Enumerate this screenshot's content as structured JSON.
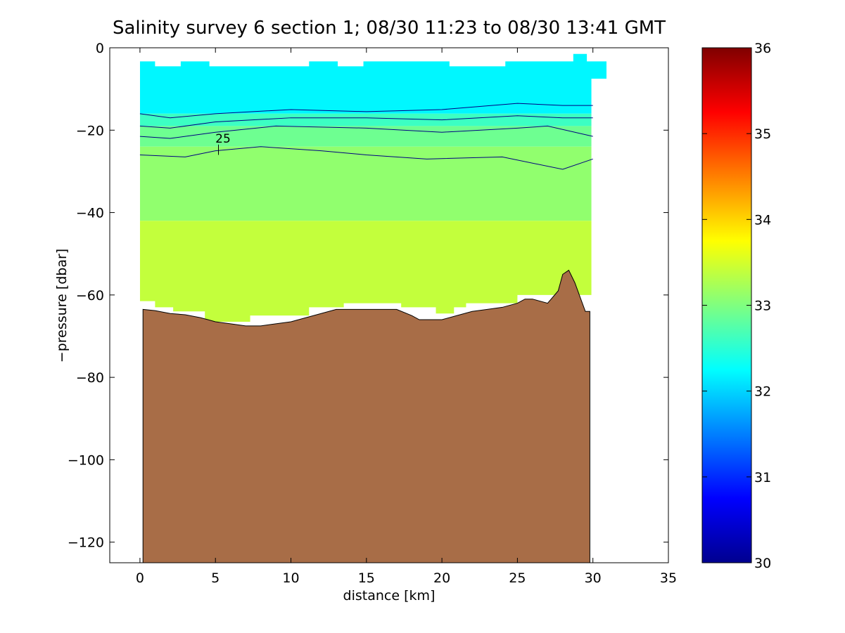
{
  "chart_data": {
    "type": "heatmap",
    "title": "Salinity survey 6 section 1; 08/30 11:23 to 08/30 13:41 GMT",
    "xlabel": "distance [km]",
    "ylabel": "−pressure [dbar]",
    "xlim": [
      -2,
      35
    ],
    "ylim": [
      -125,
      0
    ],
    "xticks": [
      0,
      5,
      10,
      15,
      20,
      25,
      30,
      35
    ],
    "xtick_labels": [
      "0",
      "5",
      "10",
      "15",
      "20",
      "25",
      "30",
      "35"
    ],
    "yticks": [
      0,
      -20,
      -40,
      -60,
      -80,
      -100,
      -120
    ],
    "ytick_labels": [
      "0",
      "−20",
      "−40",
      "−60",
      "−80",
      "−100",
      "−120"
    ],
    "colorbar": {
      "range": [
        30,
        36
      ],
      "ticks": [
        30,
        31,
        32,
        33,
        34,
        35,
        36
      ],
      "tick_labels": [
        "30",
        "31",
        "32",
        "33",
        "34",
        "35",
        "36"
      ],
      "colormap": "jet"
    },
    "contour_label": "25",
    "contour_label_pos": [
      5.5,
      -23
    ],
    "salinity_layers": [
      {
        "top": [
          -3,
          -3.5
        ],
        "bottom": -16,
        "value": 32.2
      },
      {
        "top": -16,
        "bottom": -19,
        "value": 32.6
      },
      {
        "top": -19,
        "bottom": -24,
        "value": 32.9
      },
      {
        "top": -24,
        "bottom": -42,
        "value": 33.1
      },
      {
        "top": -42,
        "bottom": "bottom",
        "value": 33.4
      }
    ],
    "data_extent": {
      "top_edge": [
        [
          0,
          -3.3
        ],
        [
          1,
          -3.3
        ],
        [
          1,
          -4.5
        ],
        [
          2.7,
          -4.5
        ],
        [
          2.7,
          -3.3
        ],
        [
          4.6,
          -3.3
        ],
        [
          4.6,
          -4.5
        ],
        [
          11.2,
          -4.5
        ],
        [
          11.2,
          -3.3
        ],
        [
          13.1,
          -3.3
        ],
        [
          13.1,
          -4.5
        ],
        [
          14.8,
          -4.5
        ],
        [
          14.8,
          -3.3
        ],
        [
          20.5,
          -3.3
        ],
        [
          20.5,
          -4.5
        ],
        [
          24.2,
          -4.5
        ],
        [
          24.2,
          -3.3
        ],
        [
          28.7,
          -3.3
        ],
        [
          28.7,
          -1.5
        ],
        [
          29.6,
          -1.5
        ],
        [
          29.6,
          -3.3
        ],
        [
          30.9,
          -3.3
        ],
        [
          30.9,
          -7.5
        ],
        [
          29.9,
          -7.5
        ]
      ],
      "bottom_edge": [
        [
          29.9,
          -60
        ],
        [
          25,
          -60
        ],
        [
          25,
          -62
        ],
        [
          21.6,
          -62
        ],
        [
          21.6,
          -63
        ],
        [
          20.8,
          -63
        ],
        [
          20.8,
          -64.5
        ],
        [
          19.6,
          -64.5
        ],
        [
          19.6,
          -63
        ],
        [
          17.3,
          -63
        ],
        [
          17.3,
          -62
        ],
        [
          13.5,
          -62
        ],
        [
          13.5,
          -63
        ],
        [
          11.2,
          -63
        ],
        [
          11.2,
          -65
        ],
        [
          7.3,
          -65
        ],
        [
          7.3,
          -66.5
        ],
        [
          4.3,
          -66.5
        ],
        [
          4.3,
          -64
        ],
        [
          2.2,
          -64
        ],
        [
          2.2,
          -63
        ],
        [
          1,
          -63
        ],
        [
          1,
          -61.5
        ],
        [
          0,
          -61.5
        ]
      ]
    },
    "contours": [
      {
        "x": [
          0,
          2,
          5,
          10,
          15,
          20,
          25,
          28,
          30
        ],
        "y": [
          -16,
          -17,
          -16,
          -15,
          -15.5,
          -15,
          -13.5,
          -14,
          -14
        ]
      },
      {
        "x": [
          0,
          2,
          5,
          10,
          15,
          20,
          25,
          28,
          30
        ],
        "y": [
          -19,
          -19.5,
          -18,
          -17,
          -17,
          -17.5,
          -16.5,
          -17,
          -17
        ]
      },
      {
        "x": [
          0,
          2,
          5,
          9,
          15,
          20,
          25,
          27,
          30
        ],
        "y": [
          -21.5,
          -22,
          -20.5,
          -19,
          -19.5,
          -20.5,
          -19.5,
          -19,
          -21.5
        ]
      },
      {
        "x": [
          0,
          3,
          5,
          8,
          12,
          15,
          19,
          24,
          28,
          30
        ],
        "y": [
          -26,
          -26.5,
          -25,
          -24,
          -25,
          -26,
          -27,
          -26.5,
          -29.5,
          -27
        ]
      }
    ],
    "bathymetry": {
      "x": [
        0.2,
        1,
        2,
        3,
        4,
        4.5,
        5,
        6,
        7,
        8,
        9,
        10,
        11,
        12,
        13,
        14,
        15,
        16,
        17,
        18,
        18.5,
        19,
        20,
        21,
        22,
        23,
        24,
        25,
        25.5,
        26,
        27,
        27.7,
        28,
        28.4,
        28.8,
        29.2,
        29.5,
        29.8
      ],
      "y": [
        -63.5,
        -63.8,
        -64.5,
        -64.8,
        -65.5,
        -66,
        -66.5,
        -67,
        -67.5,
        -67.5,
        -67,
        -66.5,
        -65.5,
        -64.5,
        -63.5,
        -63.5,
        -63.5,
        -63.5,
        -63.5,
        -65,
        -66,
        -66,
        -66,
        -65,
        -64,
        -63.5,
        -63,
        -62,
        -61,
        -61,
        -62,
        -59,
        -55,
        -54,
        -57,
        -61,
        -64,
        -64
      ]
    }
  }
}
